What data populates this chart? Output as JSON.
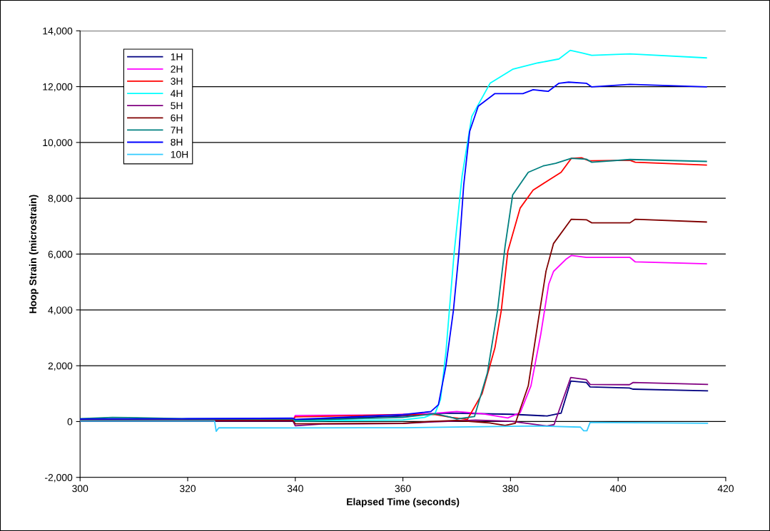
{
  "chart_data": {
    "type": "line",
    "xlabel": "Elapsed Time (seconds)",
    "ylabel": "Hoop Strain (microstrain)",
    "xlim": [
      300,
      420
    ],
    "xticks": [
      300,
      320,
      340,
      360,
      380,
      400,
      420
    ],
    "ylim": [
      -2000,
      14000
    ],
    "yticks": [
      {
        "value": -2000,
        "label": "-2,000"
      },
      0,
      {
        "value": 2000,
        "label": "2,000"
      },
      {
        "value": 4000,
        "label": "4,000"
      },
      {
        "value": 6000,
        "label": "6,000"
      },
      {
        "value": 8000,
        "label": "8,000"
      },
      {
        "value": 10000,
        "label": "10,000"
      },
      {
        "value": 12000,
        "label": "12,000"
      },
      {
        "value": 14000,
        "label": "14,000"
      }
    ],
    "grid": "y",
    "legend": "top left",
    "marker": "none",
    "line_style": "solid",
    "series": [
      {
        "name": "1H",
        "color": "#000080",
        "x": [
          339.5,
          340,
          360,
          365,
          369.1,
          380.2,
          386.8,
          389.4,
          391.2,
          394.1,
          394.8,
          402.1,
          402.8,
          416.6
        ],
        "values": [
          100,
          60,
          200,
          280,
          300,
          260,
          200,
          300,
          1450,
          1400,
          1240,
          1200,
          1160,
          1100
        ]
      },
      {
        "name": "2H",
        "color": "#ff00ff",
        "x": [
          300,
          339.5,
          340,
          355,
          365,
          370,
          374.7,
          379.5,
          381.8,
          383.8,
          385.6,
          387.1,
          388,
          390.4,
          391.3,
          394.1,
          402.2,
          403.2,
          416.4
        ],
        "values": [
          30,
          30,
          220,
          230,
          280,
          360,
          280,
          130,
          320,
          1280,
          3100,
          4920,
          5380,
          5830,
          5950,
          5880,
          5880,
          5720,
          5650
        ]
      },
      {
        "name": "3H",
        "color": "#ff0000",
        "x": [
          300,
          339.5,
          340,
          360,
          366,
          369,
          372,
          374.7,
          377.1,
          378.3,
          379.5,
          381.8,
          384.2,
          387.1,
          389.4,
          391.3,
          393.2,
          394.6,
          402.2,
          403.2,
          416.4
        ],
        "values": [
          50,
          50,
          170,
          250,
          250,
          150,
          80,
          990,
          2640,
          4000,
          6100,
          7650,
          8290,
          8650,
          8930,
          9430,
          9450,
          9340,
          9360,
          9290,
          9190
        ]
      },
      {
        "name": "4H",
        "color": "#00ffff",
        "x": [
          300,
          339.5,
          340,
          360,
          364,
          366,
          367,
          368,
          369.5,
          371,
          372.8,
          376.2,
          380.4,
          385.1,
          389,
          391.1,
          393.2,
          395.1,
          402.2,
          416.4
        ],
        "values": [
          60,
          60,
          20,
          60,
          150,
          300,
          800,
          2500,
          6000,
          8800,
          10930,
          12120,
          12620,
          12850,
          12990,
          13300,
          13210,
          13120,
          13170,
          13030
        ]
      },
      {
        "name": "5H",
        "color": "#800080",
        "x": [
          300,
          339.5,
          340,
          345,
          360,
          365,
          373.5,
          380.2,
          386.8,
          388.1,
          391.2,
          394.1,
          394.8,
          402.1,
          402.8,
          416.6
        ],
        "values": [
          40,
          40,
          -150,
          -90,
          -70,
          -20,
          50,
          10,
          -160,
          -110,
          1580,
          1500,
          1330,
          1320,
          1400,
          1330
        ]
      },
      {
        "name": "6H",
        "color": "#800000",
        "x": [
          300,
          339.5,
          340,
          360,
          365,
          370,
          376.1,
          379,
          380.9,
          383.3,
          385.1,
          386.6,
          388,
          391.3,
          394.1,
          395.1,
          402.2,
          403.2,
          416.4
        ],
        "values": [
          50,
          50,
          -80,
          -60,
          0,
          40,
          -50,
          -140,
          -60,
          1280,
          3550,
          5390,
          6380,
          7250,
          7230,
          7120,
          7120,
          7250,
          7150
        ]
      },
      {
        "name": "7H",
        "color": "#008080",
        "x": [
          300,
          306,
          309,
          320,
          339.5,
          340,
          360,
          366,
          369,
          370,
          373.3,
          375.7,
          377.6,
          379,
          380.4,
          383.3,
          386.1,
          388.4,
          391.3,
          394.1,
          395.1,
          402.2,
          416.4
        ],
        "values": [
          100,
          150,
          140,
          100,
          100,
          40,
          150,
          280,
          150,
          90,
          180,
          1740,
          4000,
          6290,
          8120,
          8930,
          9160,
          9250,
          9430,
          9400,
          9290,
          9390,
          9320
        ]
      },
      {
        "name": "8H",
        "color": "#0000ff",
        "x": [
          300,
          320,
          339.5,
          340,
          360,
          364,
          365.2,
          366.6,
          368,
          369.4,
          370.4,
          371.3,
          372.4,
          374,
          377.1,
          382.3,
          384.2,
          387,
          389,
          390.8,
          394.1,
          395.1,
          402.2,
          416.4
        ],
        "values": [
          90,
          100,
          120,
          80,
          250,
          330,
          360,
          600,
          2000,
          4000,
          6020,
          8470,
          10390,
          11300,
          11750,
          11750,
          11890,
          11830,
          12120,
          12160,
          12120,
          11990,
          12080,
          11990
        ]
      },
      {
        "name": "10H",
        "color": "#33ccff",
        "x": [
          300,
          325.0,
          325.3,
          325.8,
          339.5,
          360,
          385,
          393,
          393.6,
          394.2,
          394.8,
          416.6
        ],
        "values": [
          20,
          20,
          -350,
          -220,
          -230,
          -220,
          -160,
          -200,
          -330,
          -330,
          -30,
          -60
        ]
      }
    ]
  }
}
